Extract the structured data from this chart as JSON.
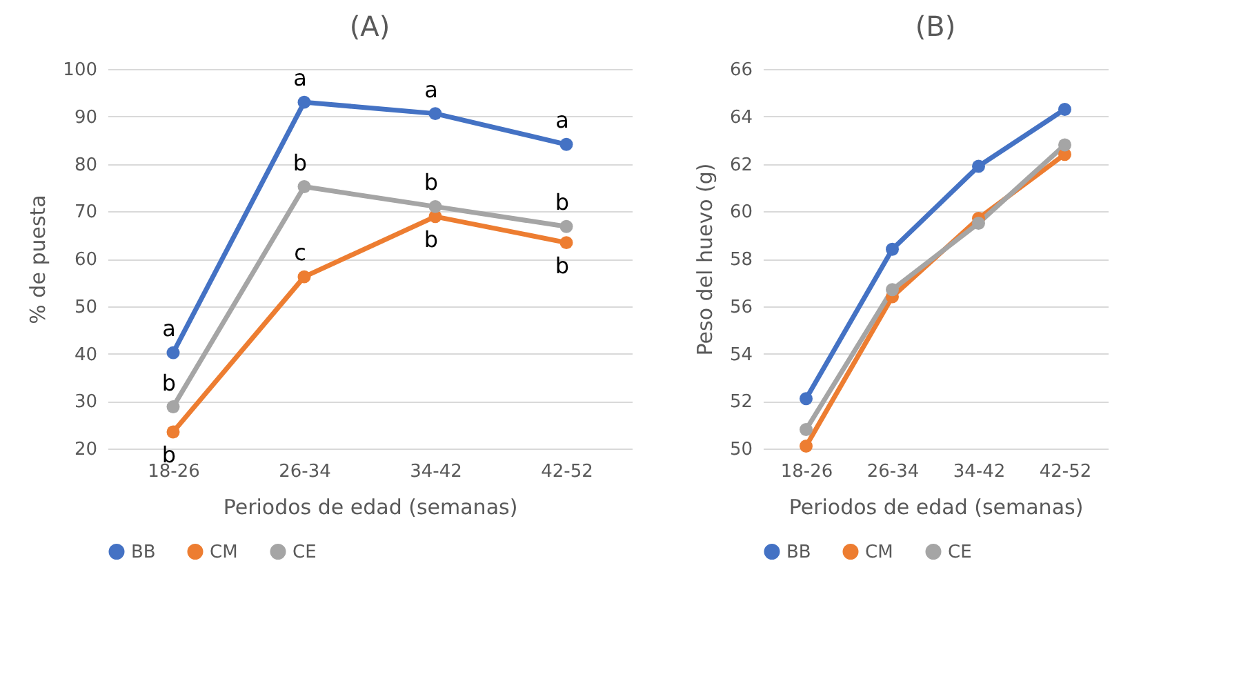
{
  "chart_data": [
    {
      "type": "line",
      "title": "(A)",
      "xlabel": "Periodos de edad (semanas)",
      "ylabel": "% de puesta",
      "categories": [
        "18-26",
        "26-34",
        "34-42",
        "42-52"
      ],
      "series": [
        {
          "name": "BB",
          "color": "#4472c4",
          "values": [
            40.2,
            93.0,
            90.6,
            84.1
          ]
        },
        {
          "name": "CM",
          "color": "#ed7d31",
          "values": [
            23.5,
            56.2,
            68.9,
            63.4
          ]
        },
        {
          "name": "CE",
          "color": "#a5a5a5",
          "values": [
            28.8,
            75.2,
            71.0,
            66.8
          ]
        }
      ],
      "ylim": [
        20,
        100
      ],
      "yticks": [
        20,
        30,
        40,
        50,
        60,
        70,
        80,
        90,
        100
      ],
      "grid": "y",
      "legend": "bottom",
      "marker": "circle",
      "line_style": "solid",
      "annotations": [
        {
          "text": "a",
          "x": "18-26",
          "y": 40.2
        },
        {
          "text": "b",
          "x": "18-26",
          "y": 28.8
        },
        {
          "text": "b",
          "x": "18-26",
          "y": 23.5
        },
        {
          "text": "a",
          "x": "26-34",
          "y": 93.0
        },
        {
          "text": "b",
          "x": "26-34",
          "y": 75.2
        },
        {
          "text": "c",
          "x": "26-34",
          "y": 56.2
        },
        {
          "text": "a",
          "x": "34-42",
          "y": 90.6
        },
        {
          "text": "b",
          "x": "34-42",
          "y": 71.0
        },
        {
          "text": "b",
          "x": "34-42",
          "y": 68.9
        },
        {
          "text": "a",
          "x": "42-52",
          "y": 84.1
        },
        {
          "text": "b",
          "x": "42-52",
          "y": 66.8
        },
        {
          "text": "b",
          "x": "42-52",
          "y": 63.4
        }
      ]
    },
    {
      "type": "line",
      "title": "(B)",
      "xlabel": "Periodos de edad (semanas)",
      "ylabel": "Peso del huevo (g)",
      "categories": [
        "18-26",
        "26-34",
        "34-42",
        "42-52"
      ],
      "series": [
        {
          "name": "BB",
          "color": "#4472c4",
          "values": [
            52.1,
            58.4,
            61.9,
            64.3
          ]
        },
        {
          "name": "CM",
          "color": "#ed7d31",
          "values": [
            50.1,
            56.4,
            59.7,
            62.4
          ]
        },
        {
          "name": "CE",
          "color": "#a5a5a5",
          "values": [
            50.8,
            56.7,
            59.5,
            62.8
          ]
        }
      ],
      "ylim": [
        50,
        66
      ],
      "yticks": [
        50,
        52,
        54,
        56,
        58,
        60,
        62,
        64,
        66
      ],
      "grid": "y",
      "legend": "bottom",
      "marker": "circle",
      "line_style": "solid"
    }
  ]
}
